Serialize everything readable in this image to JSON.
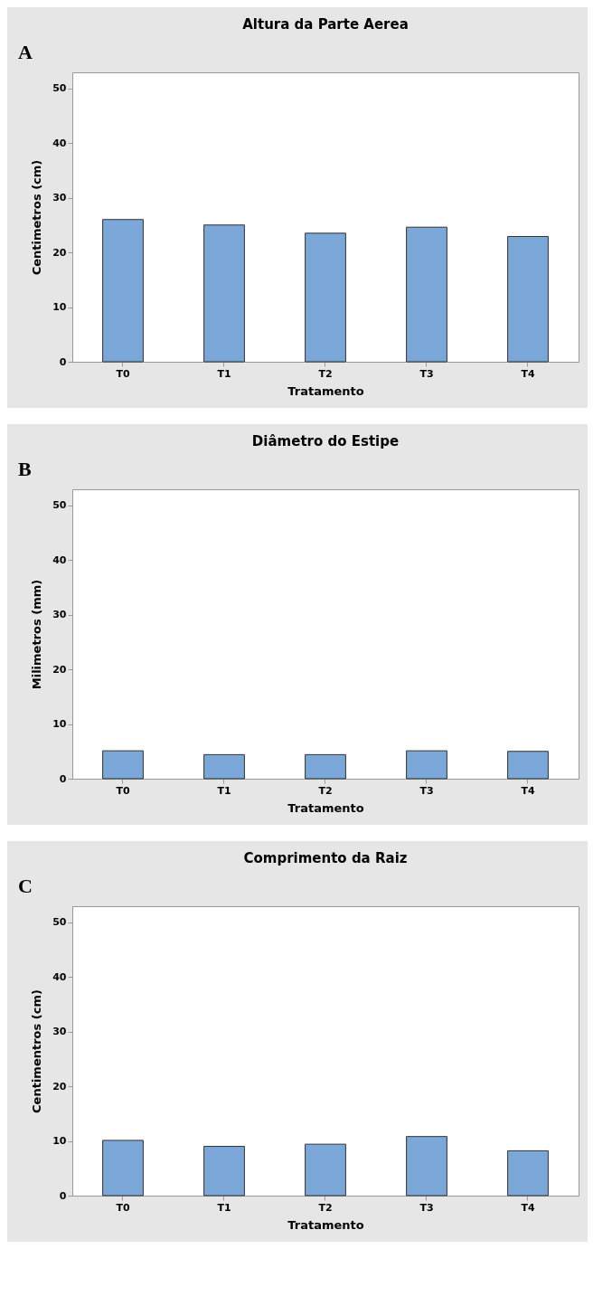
{
  "chart_data": [
    {
      "type": "bar",
      "title": "Altura da Parte Aerea",
      "xlabel": "Tratamento",
      "ylabel": "Centimetros (cm)",
      "annotations": [
        "A"
      ],
      "categories": [
        "T0",
        "T1",
        "T2",
        "T3",
        "T4"
      ],
      "values": [
        26.0,
        25.0,
        23.5,
        24.6,
        22.9
      ],
      "color": "#7ba7d9",
      "ylim": [
        0,
        52.9
      ],
      "yticks": [
        0,
        10,
        20,
        30,
        40,
        50
      ],
      "grid": false
    },
    {
      "type": "bar",
      "title": "Diâmetro do Estipe",
      "xlabel": "Tratamento",
      "ylabel": "Milimetros (mm)",
      "annotations": [
        "B"
      ],
      "categories": [
        "T0",
        "T1",
        "T2",
        "T3",
        "T4"
      ],
      "values": [
        5.1,
        4.4,
        4.4,
        5.1,
        5.0
      ],
      "color": "#7ba7d9",
      "ylim": [
        0,
        52.9
      ],
      "yticks": [
        0,
        10,
        20,
        30,
        40,
        50
      ],
      "grid": false
    },
    {
      "type": "bar",
      "title": "Comprimento da Raiz",
      "xlabel": "Tratamento",
      "ylabel": "Centimentros (cm)",
      "annotations": [
        "C"
      ],
      "categories": [
        "T0",
        "T1",
        "T2",
        "T3",
        "T4"
      ],
      "values": [
        10.1,
        9.0,
        9.4,
        10.8,
        8.2
      ],
      "color": "#7ba7d9",
      "ylim": [
        0,
        52.9
      ],
      "yticks": [
        0,
        10,
        20,
        30,
        40,
        50
      ],
      "grid": false
    }
  ]
}
